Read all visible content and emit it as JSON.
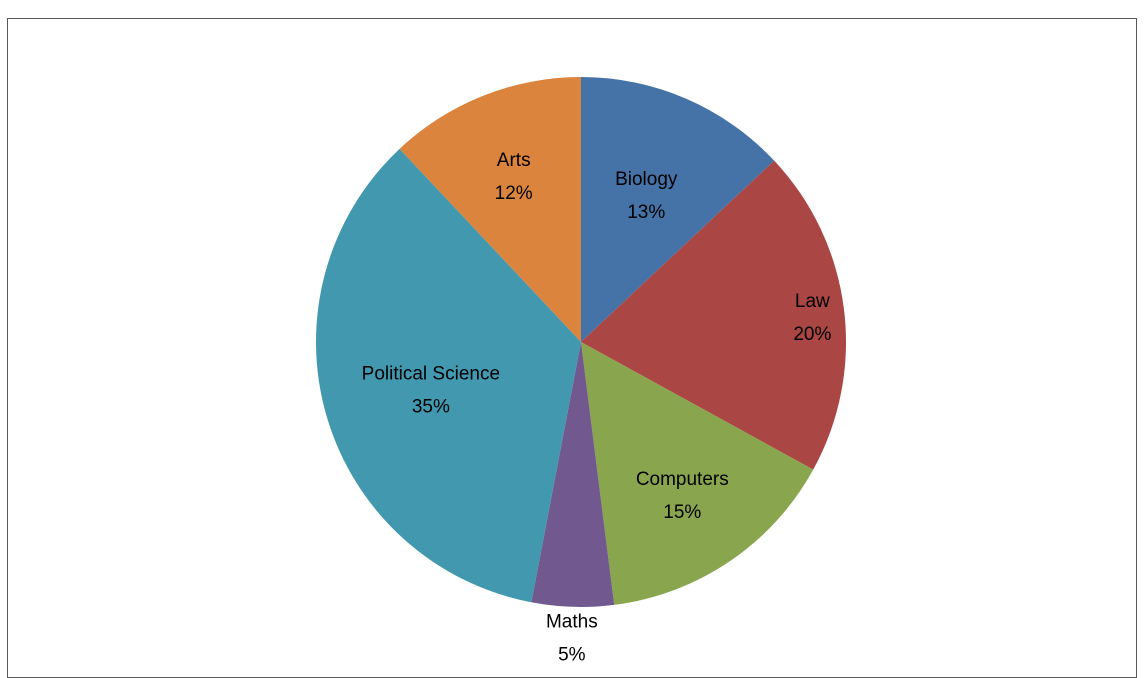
{
  "chart_data": {
    "type": "pie",
    "title": "",
    "slices": [
      {
        "label": "Biology",
        "value": 13,
        "value_label": "13%",
        "color": "#4572A7"
      },
      {
        "label": "Law",
        "value": 20,
        "value_label": "20%",
        "color": "#AA4643"
      },
      {
        "label": "Computers",
        "value": 15,
        "value_label": "15%",
        "color": "#89A54E"
      },
      {
        "label": "Maths",
        "value": 5,
        "value_label": "5%",
        "color": "#71588F"
      },
      {
        "label": "Political Science",
        "value": 35,
        "value_label": "35%",
        "color": "#4198AF"
      },
      {
        "label": "Arts",
        "value": 12,
        "value_label": "12%",
        "color": "#DB843D"
      }
    ],
    "start_angle": "12 o'clock",
    "direction": "clockwise",
    "legend": "none",
    "data_labels": "category name and percentage"
  }
}
